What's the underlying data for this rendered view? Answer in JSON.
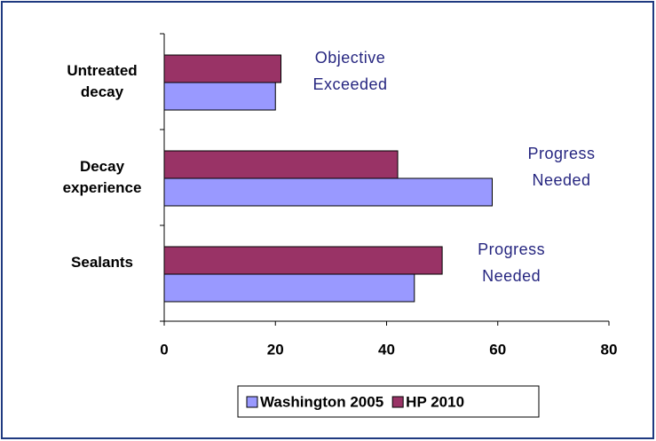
{
  "chart_data": {
    "type": "hbar",
    "categories": [
      "Untreated decay",
      "Decay experience",
      "Sealants"
    ],
    "series": [
      {
        "name": "HP 2010",
        "color": "#993366",
        "values": [
          21,
          42,
          50
        ]
      },
      {
        "name": "Washington 2005",
        "color": "#9999ff",
        "values": [
          20,
          59,
          45
        ]
      }
    ],
    "legend_order": [
      "Washington 2005",
      "HP 2010"
    ],
    "annotations": [
      "Objective Exceeded",
      "Progress Needed",
      "Progress Needed"
    ],
    "annotation_color": "#262680",
    "xlim": [
      0,
      80
    ],
    "xticks": [
      0,
      20,
      40,
      60,
      80
    ],
    "grid": false,
    "legend": "bottom"
  }
}
